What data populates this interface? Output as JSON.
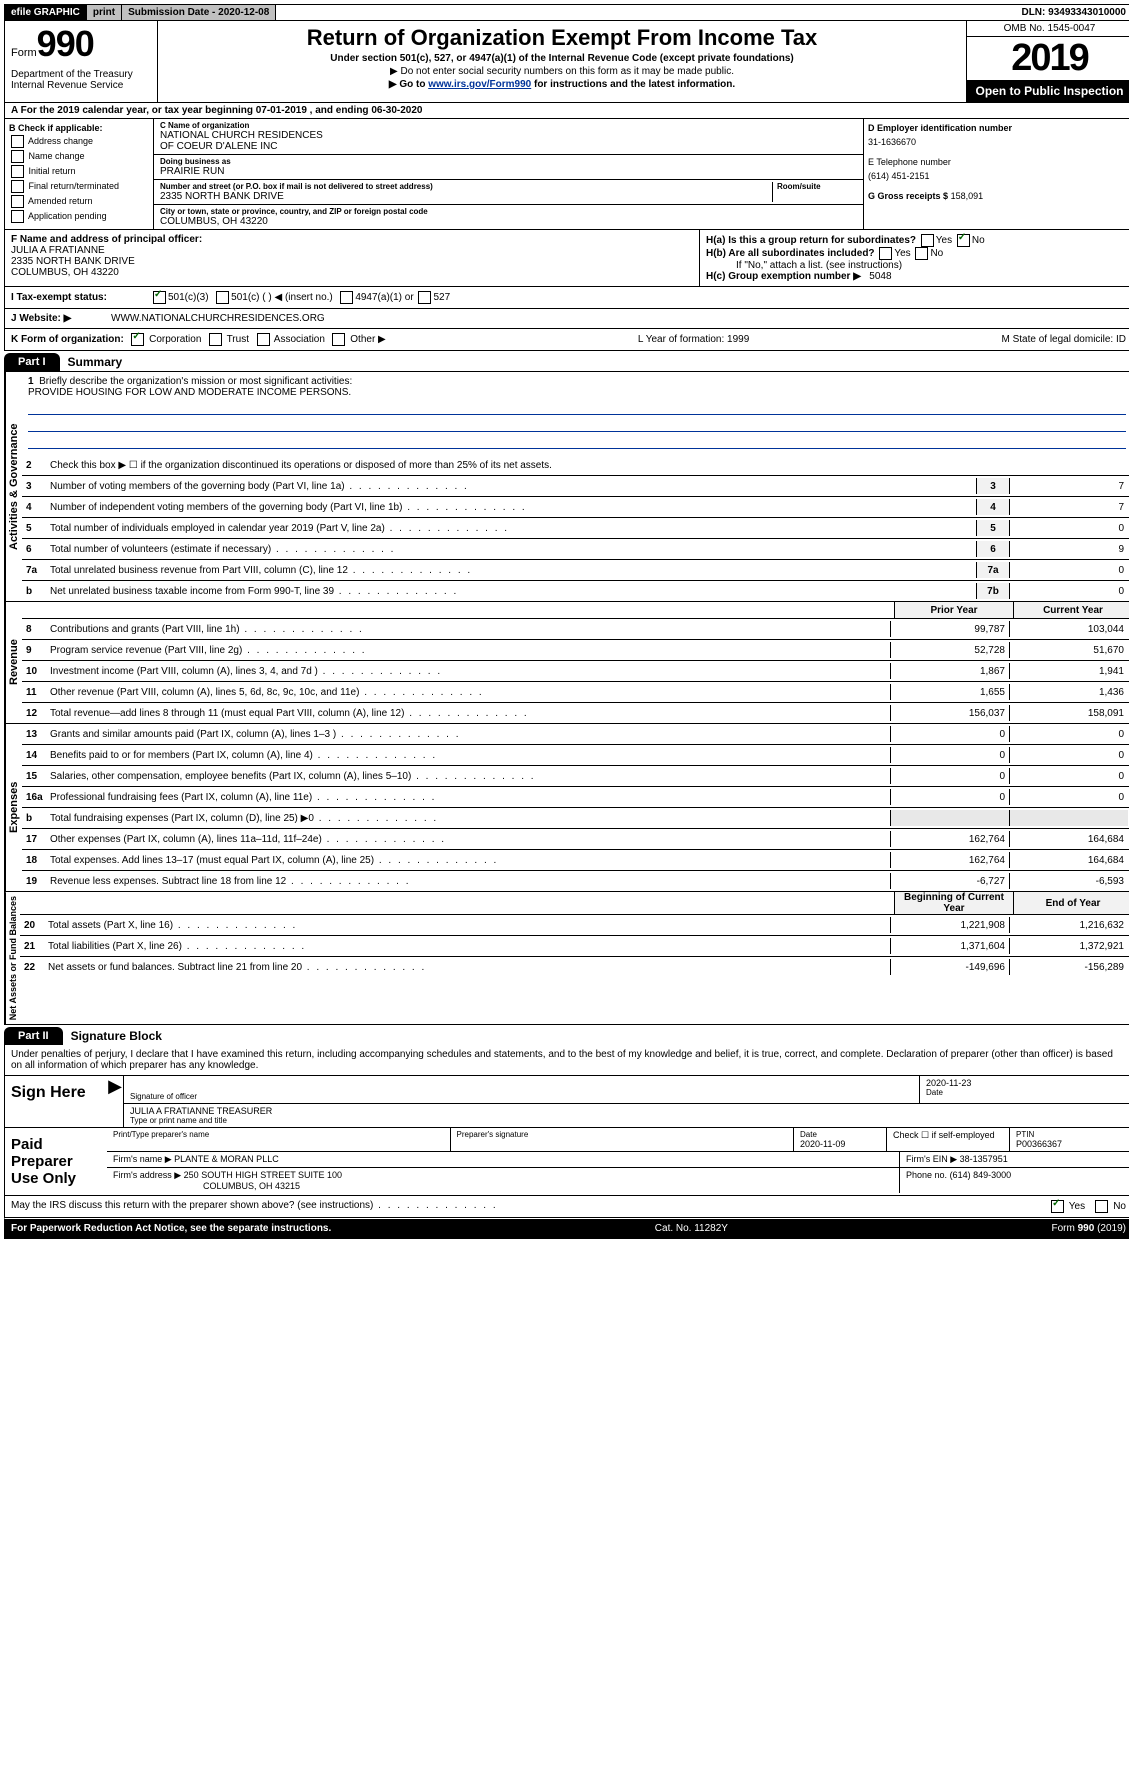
{
  "topbar": {
    "efile": "efile GRAPHIC",
    "print": "print",
    "sub_label": "Submission Date - 2020-12-08",
    "dln": "DLN: 93493343010000"
  },
  "header": {
    "form_word": "Form",
    "form_num": "990",
    "dept": "Department of the Treasury\nInternal Revenue Service",
    "title": "Return of Organization Exempt From Income Tax",
    "subtitle": "Under section 501(c), 527, or 4947(a)(1) of the Internal Revenue Code (except private foundations)",
    "instr1": "▶ Do not enter social security numbers on this form as it may be made public.",
    "instr2_pre": "▶ Go to ",
    "instr2_link": "www.irs.gov/Form990",
    "instr2_post": " for instructions and the latest information.",
    "omb": "OMB No. 1545-0047",
    "year": "2019",
    "open_public": "Open to Public Inspection"
  },
  "row_a": "A For the 2019 calendar year, or tax year beginning 07-01-2019   , and ending 06-30-2020",
  "col_b": {
    "header": "B Check if applicable:",
    "items": [
      "Address change",
      "Name change",
      "Initial return",
      "Final return/terminated",
      "Amended return",
      "Application pending"
    ]
  },
  "col_c": {
    "name_label": "C Name of organization",
    "name1": "NATIONAL CHURCH RESIDENCES",
    "name2": "OF COEUR D'ALENE INC",
    "dba_label": "Doing business as",
    "dba": "PRAIRIE RUN",
    "addr_label": "Number and street (or P.O. box if mail is not delivered to street address)",
    "room_label": "Room/suite",
    "addr": "2335 NORTH BANK DRIVE",
    "city_label": "City or town, state or province, country, and ZIP or foreign postal code",
    "city": "COLUMBUS, OH  43220"
  },
  "col_d": {
    "ein_label": "D Employer identification number",
    "ein": "31-1636670",
    "tel_label": "E Telephone number",
    "tel": "(614) 451-2151",
    "gross_label": "G Gross receipts $",
    "gross": "158,091"
  },
  "row_f": {
    "label": "F  Name and address of principal officer:",
    "name": "JULIA A FRATIANNE",
    "addr1": "2335 NORTH BANK DRIVE",
    "addr2": "COLUMBUS, OH  43220",
    "ha": "H(a)  Is this a group return for subordinates?",
    "hb": "H(b)  Are all subordinates included?",
    "hb_note": "If \"No,\" attach a list. (see instructions)",
    "hc": "H(c)  Group exemption number ▶",
    "hc_val": "5048",
    "yes": "Yes",
    "no": "No"
  },
  "tax_row": {
    "label": "I   Tax-exempt status:",
    "opts": [
      "501(c)(3)",
      "501(c) (   ) ◀ (insert no.)",
      "4947(a)(1) or",
      "527"
    ]
  },
  "web_row": {
    "label": "J   Website: ▶",
    "val": "WWW.NATIONALCHURCHRESIDENCES.ORG"
  },
  "k_row": {
    "label": "K Form of organization:",
    "opts": [
      "Corporation",
      "Trust",
      "Association",
      "Other ▶"
    ],
    "l": "L Year of formation: 1999",
    "m": "M State of legal domicile: ID"
  },
  "part1": {
    "tab": "Part I",
    "title": "Summary",
    "q1": "Briefly describe the organization's mission or most significant activities:",
    "mission": "PROVIDE HOUSING FOR LOW AND MODERATE INCOME PERSONS.",
    "q2": "Check this box ▶ ☐  if the organization discontinued its operations or disposed of more than 25% of its net assets.",
    "sections": {
      "gov": "Activities & Governance",
      "rev": "Revenue",
      "exp": "Expenses",
      "net": "Net Assets or Fund Balances"
    },
    "hdr_prior": "Prior Year",
    "hdr_curr": "Current Year",
    "hdr_beg": "Beginning of Current Year",
    "hdr_end": "End of Year",
    "lines_gov": [
      {
        "n": "3",
        "d": "Number of voting members of the governing body (Part VI, line 1a)",
        "c": "3",
        "v": "7"
      },
      {
        "n": "4",
        "d": "Number of independent voting members of the governing body (Part VI, line 1b)",
        "c": "4",
        "v": "7"
      },
      {
        "n": "5",
        "d": "Total number of individuals employed in calendar year 2019 (Part V, line 2a)",
        "c": "5",
        "v": "0"
      },
      {
        "n": "6",
        "d": "Total number of volunteers (estimate if necessary)",
        "c": "6",
        "v": "9"
      },
      {
        "n": "7a",
        "d": "Total unrelated business revenue from Part VIII, column (C), line 12",
        "c": "7a",
        "v": "0"
      },
      {
        "n": "b",
        "d": "Net unrelated business taxable income from Form 990-T, line 39",
        "c": "7b",
        "v": "0"
      }
    ],
    "lines_rev": [
      {
        "n": "8",
        "d": "Contributions and grants (Part VIII, line 1h)",
        "p": "99,787",
        "c": "103,044"
      },
      {
        "n": "9",
        "d": "Program service revenue (Part VIII, line 2g)",
        "p": "52,728",
        "c": "51,670"
      },
      {
        "n": "10",
        "d": "Investment income (Part VIII, column (A), lines 3, 4, and 7d )",
        "p": "1,867",
        "c": "1,941"
      },
      {
        "n": "11",
        "d": "Other revenue (Part VIII, column (A), lines 5, 6d, 8c, 9c, 10c, and 11e)",
        "p": "1,655",
        "c": "1,436"
      },
      {
        "n": "12",
        "d": "Total revenue—add lines 8 through 11 (must equal Part VIII, column (A), line 12)",
        "p": "156,037",
        "c": "158,091"
      }
    ],
    "lines_exp": [
      {
        "n": "13",
        "d": "Grants and similar amounts paid (Part IX, column (A), lines 1–3 )",
        "p": "0",
        "c": "0"
      },
      {
        "n": "14",
        "d": "Benefits paid to or for members (Part IX, column (A), line 4)",
        "p": "0",
        "c": "0"
      },
      {
        "n": "15",
        "d": "Salaries, other compensation, employee benefits (Part IX, column (A), lines 5–10)",
        "p": "0",
        "c": "0"
      },
      {
        "n": "16a",
        "d": "Professional fundraising fees (Part IX, column (A), line 11e)",
        "p": "0",
        "c": "0"
      },
      {
        "n": "b",
        "d": "Total fundraising expenses (Part IX, column (D), line 25) ▶0",
        "p": "",
        "c": "",
        "shade": true
      },
      {
        "n": "17",
        "d": "Other expenses (Part IX, column (A), lines 11a–11d, 11f–24e)",
        "p": "162,764",
        "c": "164,684"
      },
      {
        "n": "18",
        "d": "Total expenses. Add lines 13–17 (must equal Part IX, column (A), line 25)",
        "p": "162,764",
        "c": "164,684"
      },
      {
        "n": "19",
        "d": "Revenue less expenses. Subtract line 18 from line 12",
        "p": "-6,727",
        "c": "-6,593"
      }
    ],
    "lines_net": [
      {
        "n": "20",
        "d": "Total assets (Part X, line 16)",
        "p": "1,221,908",
        "c": "1,216,632"
      },
      {
        "n": "21",
        "d": "Total liabilities (Part X, line 26)",
        "p": "1,371,604",
        "c": "1,372,921"
      },
      {
        "n": "22",
        "d": "Net assets or fund balances. Subtract line 21 from line 20",
        "p": "-149,696",
        "c": "-156,289"
      }
    ]
  },
  "part2": {
    "tab": "Part II",
    "title": "Signature Block",
    "decl": "Under penalties of perjury, I declare that I have examined this return, including accompanying schedules and statements, and to the best of my knowledge and belief, it is true, correct, and complete. Declaration of preparer (other than officer) is based on all information of which preparer has any knowledge.",
    "sign_here": "Sign Here",
    "sig_officer": "Signature of officer",
    "date": "Date",
    "date_val": "2020-11-23",
    "name_title": "JULIA A FRATIANNE  TREASURER",
    "name_title_lbl": "Type or print name and title",
    "paid": "Paid Preparer Use Only",
    "prep_name_lbl": "Print/Type preparer's name",
    "prep_sig_lbl": "Preparer's signature",
    "prep_date": "2020-11-09",
    "self_emp": "Check ☐ if self-employed",
    "ptin_lbl": "PTIN",
    "ptin": "P00366367",
    "firm_name_lbl": "Firm's name    ▶",
    "firm_name": "PLANTE & MORAN PLLC",
    "firm_ein_lbl": "Firm's EIN ▶",
    "firm_ein": "38-1357951",
    "firm_addr_lbl": "Firm's address ▶",
    "firm_addr1": "250 SOUTH HIGH STREET SUITE 100",
    "firm_addr2": "COLUMBUS, OH  43215",
    "phone_lbl": "Phone no.",
    "phone": "(614) 849-3000"
  },
  "footer": {
    "discuss": "May the IRS discuss this return with the preparer shown above? (see instructions)",
    "yes": "Yes",
    "no": "No",
    "paperwork": "For Paperwork Reduction Act Notice, see the separate instructions.",
    "cat": "Cat. No. 11282Y",
    "form": "Form 990 (2019)"
  }
}
